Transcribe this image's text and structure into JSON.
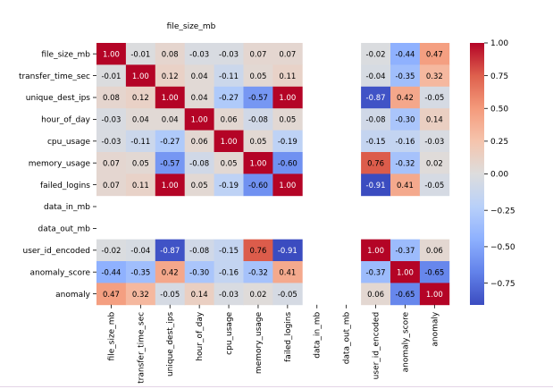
{
  "chart_data": {
    "type": "heatmap",
    "title": "file_size_mb",
    "xlabel": "",
    "ylabel": "",
    "labels": [
      "file_size_mb",
      "transfer_time_sec",
      "unique_dest_ips",
      "hour_of_day",
      "cpu_usage",
      "memory_usage",
      "failed_logins",
      "data_in_mb",
      "data_out_mb",
      "user_id_encoded",
      "anomaly_score",
      "anomaly"
    ],
    "matrix": [
      [
        1.0,
        -0.01,
        0.08,
        -0.03,
        -0.03,
        0.07,
        0.07,
        null,
        null,
        -0.02,
        -0.44,
        0.47
      ],
      [
        -0.01,
        1.0,
        0.12,
        0.04,
        -0.11,
        0.05,
        0.11,
        null,
        null,
        -0.04,
        -0.35,
        0.32
      ],
      [
        0.08,
        0.12,
        1.0,
        0.04,
        -0.27,
        -0.57,
        1.0,
        null,
        null,
        -0.87,
        0.42,
        -0.05
      ],
      [
        -0.03,
        0.04,
        0.04,
        1.0,
        0.06,
        -0.08,
        0.05,
        null,
        null,
        -0.08,
        -0.3,
        0.14
      ],
      [
        -0.03,
        -0.11,
        -0.27,
        0.06,
        1.0,
        0.05,
        -0.19,
        null,
        null,
        -0.15,
        -0.16,
        -0.03
      ],
      [
        0.07,
        0.05,
        -0.57,
        -0.08,
        0.05,
        1.0,
        -0.6,
        null,
        null,
        0.76,
        -0.32,
        0.02
      ],
      [
        0.07,
        0.11,
        1.0,
        0.05,
        -0.19,
        -0.6,
        1.0,
        null,
        null,
        -0.91,
        0.41,
        -0.05
      ],
      [
        null,
        null,
        null,
        null,
        null,
        null,
        null,
        null,
        null,
        null,
        null,
        null
      ],
      [
        null,
        null,
        null,
        null,
        null,
        null,
        null,
        null,
        null,
        null,
        null,
        null
      ],
      [
        -0.02,
        -0.04,
        -0.87,
        -0.08,
        -0.15,
        0.76,
        -0.91,
        null,
        null,
        1.0,
        -0.37,
        0.06
      ],
      [
        -0.44,
        -0.35,
        0.42,
        -0.3,
        -0.16,
        -0.32,
        0.41,
        null,
        null,
        -0.37,
        1.0,
        -0.65
      ],
      [
        0.47,
        0.32,
        -0.05,
        0.14,
        -0.03,
        0.02,
        -0.05,
        null,
        null,
        0.06,
        -0.65,
        1.0
      ]
    ],
    "colorbar": {
      "vmin": -0.9,
      "vmax": 1.0,
      "ticks": [
        1.0,
        0.75,
        0.5,
        0.25,
        0.0,
        -0.25,
        -0.5,
        -0.75
      ],
      "tick_labels": [
        "1.00",
        "0.75",
        "0.50",
        "0.25",
        "0.00",
        "−0.25",
        "−0.50",
        "−0.75"
      ],
      "colormap": "coolwarm"
    },
    "grid": false,
    "legend": "colorbar-right"
  }
}
